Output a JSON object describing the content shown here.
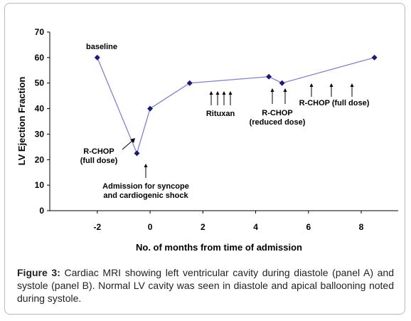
{
  "chart_data": {
    "type": "line",
    "xlabel": "No. of months from time of admission",
    "ylabel": "LV Ejection Fraction",
    "xlim": [
      -3.8,
      9.4
    ],
    "ylim": [
      0,
      70
    ],
    "x_ticks": [
      -2,
      0,
      2,
      4,
      6,
      8
    ],
    "y_ticks": [
      0,
      10,
      20,
      30,
      40,
      50,
      60,
      70
    ],
    "grid": false,
    "legend": "none",
    "series": [
      {
        "x": [
          -2,
          -0.5,
          0,
          1.5,
          4.5,
          5,
          8.5
        ],
        "y": [
          60,
          22.5,
          40,
          50,
          52.5,
          50,
          60
        ]
      }
    ],
    "annotations": {
      "baseline": "baseline",
      "rchop_full_line1": "R-CHOP",
      "rchop_full_line2": "(full dose)",
      "admission_line1": "Admission for syncope",
      "admission_line2": "and cardiogenic shock",
      "rituxan": "Rituxan",
      "rchop_reduced_line1": "R-CHOP",
      "rchop_reduced_line2": "(reduced dose)",
      "rchop_full_right": "R-CHOP (full dose)"
    },
    "colors": {
      "line": "#8080d8",
      "marker": "#1a1a7a",
      "axis": "#000000"
    }
  },
  "caption": {
    "label": "Figure 3:",
    "text": " Cardiac MRI showing left ventricular cavity during diastole (panel A) and systole (panel B). Normal LV cavity was seen in diastole and apical ballooning noted during systole."
  }
}
